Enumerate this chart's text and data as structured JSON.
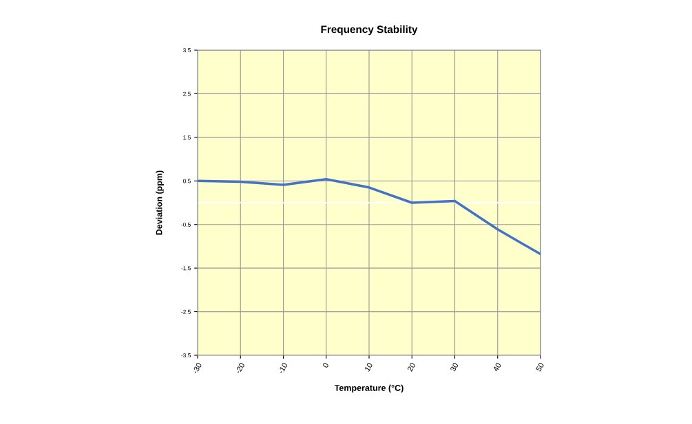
{
  "chart_data": {
    "type": "line",
    "title": "Frequency Stability",
    "xlabel": "Temperature (°C)",
    "ylabel": "Deviation (ppm)",
    "x": [
      -30,
      -20,
      -10,
      0,
      10,
      20,
      30,
      40,
      50
    ],
    "series": [
      {
        "color": "#4472c4",
        "values": [
          0.5,
          0.48,
          0.41,
          0.54,
          0.35,
          0.0,
          0.04,
          -0.61,
          -1.18
        ]
      }
    ],
    "xlim": [
      -30,
      50
    ],
    "xticks": [
      -30,
      -20,
      -10,
      0,
      10,
      20,
      30,
      40,
      50
    ],
    "ylim": [
      -3.5,
      3.5
    ],
    "yticks": [
      -3.5,
      -2.5,
      -1.5,
      -0.5,
      0.5,
      1.5,
      2.5,
      3.5
    ],
    "ref_lines": [
      {
        "axis": "y",
        "value": 0,
        "color": "#ffffff"
      }
    ],
    "grid": true,
    "marker": "none",
    "line_style": "solid"
  }
}
